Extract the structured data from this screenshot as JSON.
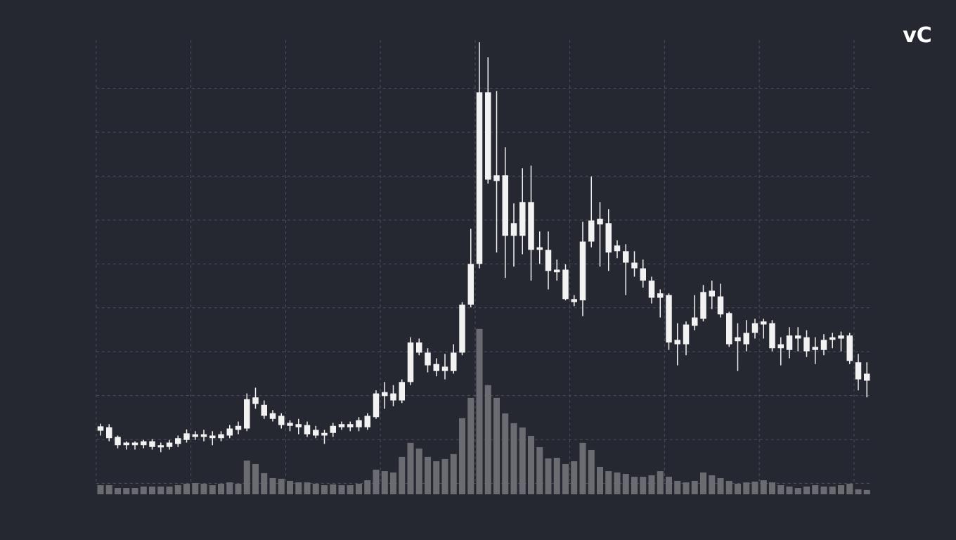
{
  "chart_data": {
    "type": "candlestick",
    "logo": "vC",
    "x": [
      0,
      1,
      2,
      3,
      4,
      5,
      6,
      7,
      8,
      9,
      10,
      11,
      12,
      13,
      14,
      15,
      16,
      17,
      18,
      19,
      20,
      21,
      22,
      23,
      24,
      25,
      26,
      27,
      28,
      29,
      30,
      31,
      32,
      33,
      34,
      35,
      36,
      37,
      38,
      39,
      40,
      41,
      42,
      43,
      44,
      45,
      46,
      47,
      48,
      49,
      50,
      51,
      52,
      53,
      54,
      55,
      56,
      57,
      58,
      59,
      60,
      61,
      62,
      63,
      64,
      65,
      66,
      67,
      68,
      69,
      70,
      71,
      72,
      73,
      74,
      75,
      76,
      77,
      78,
      79,
      80,
      81,
      82,
      83,
      84,
      85,
      86,
      87,
      88,
      89
    ],
    "open": [
      12.0,
      12.8,
      10.6,
      9.3,
      8.7,
      8.7,
      9.6,
      8.7,
      8.3,
      9.0,
      9.9,
      11.2,
      10.6,
      10.9,
      10.3,
      10.9,
      12.2,
      12.5,
      18.1,
      17.9,
      16.0,
      15.4,
      13.1,
      13.5,
      13.3,
      12.2,
      10.9,
      11.5,
      12.8,
      13.5,
      12.8,
      12.8,
      15.1,
      20.8,
      20.5,
      18.9,
      23.1,
      32.1,
      29.8,
      27.2,
      25.6,
      25.6,
      29.8,
      40.7,
      50.0,
      89.1,
      70.2,
      70.2,
      59.3,
      56.4,
      64.1,
      53.8,
      53.2,
      48.7,
      48.7,
      42.0,
      41.7,
      55.1,
      60.3,
      59.3,
      54.2,
      52.9,
      50.3,
      49.0,
      46.2,
      43.3,
      42.9,
      32.7,
      31.7,
      35.9,
      37.5,
      43.9,
      42.6,
      38.8,
      32.4,
      31.7,
      34.3,
      36.9,
      36.5,
      30.8,
      30.4,
      33.7,
      33.3,
      30.4,
      30.4,
      32.7,
      33.0,
      33.7,
      27.6,
      25.0
    ],
    "high": [
      13.6,
      13.5,
      10.9,
      9.6,
      9.6,
      9.9,
      10.1,
      9.3,
      9.9,
      10.9,
      12.3,
      11.9,
      12.2,
      11.9,
      11.9,
      13.3,
      14.1,
      20.5,
      21.8,
      18.9,
      16.7,
      16.0,
      14.4,
      14.7,
      14.1,
      13.1,
      12.2,
      13.8,
      14.1,
      14.1,
      15.1,
      16.0,
      21.2,
      23.1,
      22.4,
      23.7,
      33.3,
      33.0,
      30.8,
      28.5,
      29.5,
      31.7,
      41.3,
      58.0,
      100.5,
      97.1,
      89.4,
      76.6,
      63.8,
      71.8,
      72.4,
      57.4,
      57.4,
      51.0,
      49.9,
      42.9,
      59.6,
      69.9,
      64.1,
      62.5,
      55.4,
      54.5,
      52.9,
      51.0,
      47.1,
      44.2,
      43.3,
      36.5,
      36.9,
      42.9,
      45.2,
      46.2,
      45.5,
      39.1,
      36.5,
      37.2,
      37.5,
      37.5,
      37.2,
      33.3,
      35.6,
      35.6,
      34.9,
      33.3,
      34.0,
      34.3,
      34.6,
      34.3,
      29.5,
      27.6
    ],
    "low": [
      10.9,
      9.6,
      8.0,
      7.7,
      7.7,
      8.0,
      7.7,
      7.1,
      7.7,
      8.3,
      9.3,
      9.9,
      9.6,
      8.7,
      9.6,
      10.3,
      11.2,
      11.9,
      17.0,
      14.7,
      14.1,
      12.5,
      11.9,
      11.2,
      10.6,
      10.3,
      9.0,
      10.6,
      12.2,
      11.9,
      11.9,
      12.2,
      14.7,
      17.0,
      17.6,
      18.3,
      22.4,
      29.2,
      25.3,
      24.4,
      23.7,
      25.0,
      29.2,
      40.1,
      49.0,
      68.3,
      52.6,
      46.8,
      49.4,
      52.2,
      46.2,
      50.0,
      44.2,
      46.2,
      41.7,
      40.4,
      38.1,
      53.8,
      49.4,
      48.4,
      51.3,
      42.9,
      47.1,
      44.6,
      41.0,
      37.8,
      30.4,
      26.9,
      29.2,
      34.9,
      36.9,
      39.7,
      37.8,
      31.1,
      25.6,
      30.1,
      33.0,
      33.0,
      30.1,
      26.9,
      28.5,
      30.1,
      28.8,
      27.2,
      29.2,
      30.8,
      30.1,
      27.2,
      21.2,
      19.6
    ],
    "close": [
      13.0,
      10.3,
      8.7,
      8.7,
      9.3,
      9.6,
      8.3,
      8.2,
      9.3,
      10.3,
      11.4,
      10.6,
      11.2,
      10.3,
      11.2,
      12.5,
      13.1,
      19.2,
      19.6,
      15.4,
      14.7,
      13.3,
      13.8,
      12.8,
      11.2,
      10.9,
      11.5,
      13.1,
      13.5,
      12.8,
      14.4,
      15.4,
      20.5,
      19.9,
      18.9,
      23.1,
      32.1,
      29.8,
      26.9,
      25.6,
      26.6,
      29.8,
      40.7,
      50.0,
      89.1,
      69.2,
      68.9,
      56.4,
      56.4,
      64.1,
      53.2,
      53.2,
      48.4,
      48.1,
      42.0,
      41.3,
      55.1,
      59.9,
      59.0,
      52.6,
      52.9,
      50.3,
      49.0,
      46.2,
      42.3,
      42.3,
      32.1,
      31.7,
      36.2,
      37.8,
      43.6,
      42.6,
      38.5,
      31.7,
      33.3,
      34.3,
      36.5,
      36.2,
      30.8,
      31.7,
      33.7,
      33.0,
      30.1,
      31.1,
      32.7,
      33.3,
      33.7,
      27.9,
      23.7,
      23.4
    ],
    "volume": [
      5.5,
      5.5,
      3.8,
      3.8,
      3.8,
      4.7,
      4.7,
      4.7,
      4.7,
      5.5,
      6.4,
      6.8,
      6.4,
      5.5,
      6.4,
      7.2,
      6.4,
      20.4,
      18.3,
      12.8,
      9.8,
      9.4,
      8.1,
      7.2,
      7.2,
      6.4,
      5.5,
      6.0,
      5.5,
      5.5,
      6.4,
      8.5,
      14.9,
      14.0,
      13.2,
      22.6,
      31.1,
      27.7,
      22.6,
      20.0,
      21.3,
      24.3,
      46.0,
      58.3,
      100,
      66.0,
      58.3,
      48.9,
      43.0,
      40.4,
      35.3,
      28.5,
      21.7,
      22.1,
      18.3,
      20.0,
      31.1,
      26.8,
      16.6,
      14.0,
      13.2,
      12.3,
      10.6,
      10.6,
      11.5,
      14.0,
      10.6,
      8.1,
      7.2,
      8.1,
      13.2,
      11.5,
      9.8,
      8.1,
      6.4,
      7.2,
      7.7,
      8.5,
      7.2,
      5.5,
      4.7,
      3.8,
      4.7,
      5.5,
      4.7,
      4.7,
      5.5,
      6.4,
      3.0,
      2.6
    ],
    "color": "#f2f2f2",
    "volume_color": "#6b6b72",
    "grid": true,
    "xlim": [
      -2,
      90
    ],
    "xticks": [
      -0.5,
      10.5,
      21.5,
      32.5,
      43.5,
      54.5,
      65.5,
      76.5,
      87.5
    ],
    "ylim": [
      -2,
      101
    ],
    "yticks": [
      0,
      10,
      20,
      30,
      40,
      50,
      60,
      70,
      80,
      90
    ],
    "y2lim": [
      0,
      105
    ]
  }
}
